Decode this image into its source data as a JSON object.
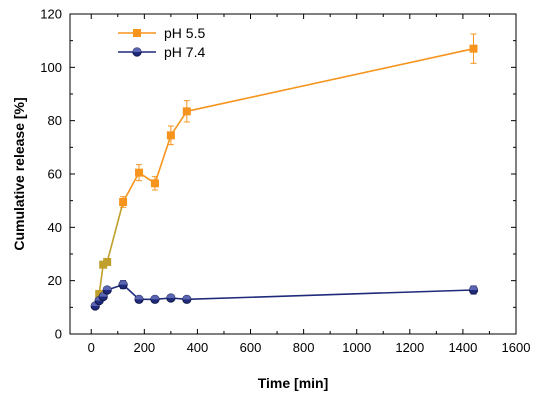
{
  "chart_data": {
    "type": "line",
    "title": "",
    "xlabel": "Time [min]",
    "ylabel": "Cumulative release [%]",
    "xlim": [
      -80,
      1600
    ],
    "ylim": [
      0,
      120
    ],
    "xticks": [
      0,
      200,
      400,
      600,
      800,
      1000,
      1200,
      1400,
      1600
    ],
    "yticks": [
      0,
      20,
      40,
      60,
      80,
      100,
      120
    ],
    "grid": false,
    "legend_position": "top-left",
    "series": [
      {
        "name": "pH 5.5",
        "color": "#f7941d",
        "early_color": "#c0a02a",
        "marker": "square",
        "x": [
          30,
          45,
          60,
          120,
          180,
          240,
          300,
          360,
          1440
        ],
        "y": [
          15,
          26,
          27,
          49.5,
          60.5,
          56.5,
          74.5,
          83.5,
          107
        ],
        "err": [
          1,
          1,
          1,
          2,
          3,
          2.5,
          3.5,
          4,
          5.5
        ]
      },
      {
        "name": "pH 7.4",
        "color": "#1f2a7a",
        "marker": "circle",
        "x": [
          15,
          30,
          45,
          60,
          120,
          180,
          240,
          300,
          360,
          1440
        ],
        "y": [
          10.5,
          12.5,
          14,
          16.5,
          18.5,
          13,
          13,
          13.5,
          13,
          16.5
        ],
        "err": [
          1,
          1,
          1,
          1,
          1.5,
          1,
          0.8,
          0.8,
          0.8,
          1.5
        ]
      }
    ]
  }
}
